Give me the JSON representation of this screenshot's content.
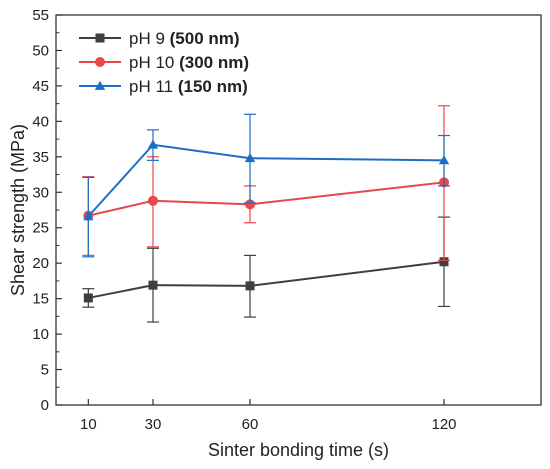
{
  "chart_data": {
    "type": "line",
    "xlabel": "Sinter bonding time (s)",
    "ylabel": "Shear strength (MPa)",
    "x": [
      10,
      30,
      60,
      120
    ],
    "xlim": [
      0,
      150
    ],
    "ylim": [
      0,
      55
    ],
    "x_ticks": [
      10,
      30,
      60,
      120
    ],
    "y_ticks": [
      0,
      5,
      10,
      15,
      20,
      25,
      30,
      35,
      40,
      45,
      50,
      55
    ],
    "grid": false,
    "legend_position": "top-left",
    "series": [
      {
        "name": "pH 9",
        "name_suffix": "(500 nm)",
        "color": "#3f3f3f",
        "marker": "square",
        "values": [
          15.1,
          16.9,
          16.8,
          20.2
        ],
        "error_low": [
          13.8,
          11.7,
          12.4,
          13.9
        ],
        "error_high": [
          16.4,
          22.1,
          21.1,
          26.5
        ]
      },
      {
        "name": "pH 10",
        "name_suffix": "(300 nm)",
        "color": "#e8474c",
        "marker": "circle",
        "values": [
          26.7,
          28.8,
          28.3,
          31.4
        ],
        "error_low": [
          21.1,
          22.3,
          25.7,
          20.4
        ],
        "error_high": [
          32.2,
          35.0,
          30.9,
          42.2
        ]
      },
      {
        "name": "pH 11",
        "name_suffix": "(150 nm)",
        "color": "#1a6fc4",
        "marker": "triangle",
        "values": [
          26.6,
          36.7,
          34.8,
          34.5
        ],
        "error_low": [
          20.9,
          34.5,
          28.5,
          30.9
        ],
        "error_high": [
          32.1,
          38.8,
          41.0,
          38.0
        ]
      }
    ]
  }
}
